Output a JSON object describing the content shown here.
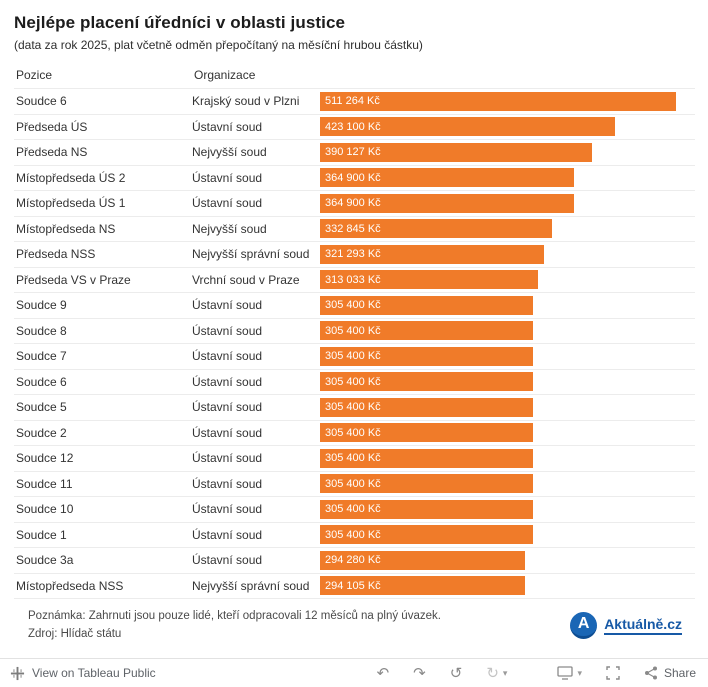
{
  "chart_data": {
    "type": "bar",
    "orientation": "horizontal",
    "title": "Nejlépe placení úředníci v oblasti justice",
    "subtitle": "(data za rok 2025, plat včetně odměn přepočítaný na měsíční hrubou částku)",
    "value_unit": "Kč",
    "xlim": [
      0,
      538000
    ],
    "grid": false,
    "legend": "none",
    "rows": [
      {
        "pozice": "Soudce 6",
        "organizace": "Krajský soud v Plzni",
        "value": 511264,
        "label": "511 264 Kč"
      },
      {
        "pozice": "Předseda ÚS",
        "organizace": "Ústavní soud",
        "value": 423100,
        "label": "423 100 Kč"
      },
      {
        "pozice": "Předseda NS",
        "organizace": "Nejvyšší soud",
        "value": 390127,
        "label": "390 127 Kč"
      },
      {
        "pozice": "Místopředseda ÚS 2",
        "organizace": "Ústavní soud",
        "value": 364900,
        "label": "364 900 Kč"
      },
      {
        "pozice": "Místopředseda ÚS 1",
        "organizace": "Ústavní soud",
        "value": 364900,
        "label": "364 900 Kč"
      },
      {
        "pozice": "Místopředseda NS",
        "organizace": "Nejvyšší soud",
        "value": 332845,
        "label": "332 845 Kč"
      },
      {
        "pozice": "Předseda NSS",
        "organizace": "Nejvyšší správní soud",
        "value": 321293,
        "label": "321 293 Kč"
      },
      {
        "pozice": "Předseda VS v Praze",
        "organizace": "Vrchní soud v Praze",
        "value": 313033,
        "label": "313 033 Kč"
      },
      {
        "pozice": "Soudce 9",
        "organizace": "Ústavní soud",
        "value": 305400,
        "label": "305 400 Kč"
      },
      {
        "pozice": "Soudce 8",
        "organizace": "Ústavní soud",
        "value": 305400,
        "label": "305 400 Kč"
      },
      {
        "pozice": "Soudce 7",
        "organizace": "Ústavní soud",
        "value": 305400,
        "label": "305 400 Kč"
      },
      {
        "pozice": "Soudce 6",
        "organizace": "Ústavní soud",
        "value": 305400,
        "label": "305 400 Kč"
      },
      {
        "pozice": "Soudce 5",
        "organizace": "Ústavní soud",
        "value": 305400,
        "label": "305 400 Kč"
      },
      {
        "pozice": "Soudce 2",
        "organizace": "Ústavní soud",
        "value": 305400,
        "label": "305 400 Kč"
      },
      {
        "pozice": "Soudce 12",
        "organizace": "Ústavní soud",
        "value": 305400,
        "label": "305 400 Kč"
      },
      {
        "pozice": "Soudce 11",
        "organizace": "Ústavní soud",
        "value": 305400,
        "label": "305 400 Kč"
      },
      {
        "pozice": "Soudce 10",
        "organizace": "Ústavní soud",
        "value": 305400,
        "label": "305 400 Kč"
      },
      {
        "pozice": "Soudce 1",
        "organizace": "Ústavní soud",
        "value": 305400,
        "label": "305 400 Kč"
      },
      {
        "pozice": "Soudce 3a",
        "organizace": "Ústavní soud",
        "value": 294280,
        "label": "294 280 Kč"
      },
      {
        "pozice": "Místopředseda NSS",
        "organizace": "Nejvyšší správní soud",
        "value": 294105,
        "label": "294 105 Kč"
      }
    ]
  },
  "table": {
    "columns": [
      "Pozice",
      "Organizace"
    ]
  },
  "footer": {
    "note": "Poznámka: Zahrnuti jsou pouze lidé, kteří odpracovali 12 měsíců na plný úvazek.",
    "source": "Zdroj: Hlídač státu",
    "brand": "Aktuálně.cz",
    "brand_initial": "A"
  },
  "toolbar": {
    "view_label": "View on Tableau Public",
    "share_label": "Share",
    "icons": {
      "undo": "↶",
      "redo": "↷",
      "reset": "↺",
      "refresh": "↻",
      "caret": "▾"
    }
  },
  "colors": {
    "bar": "#f07b29",
    "brand_blue": "#1759a6"
  }
}
